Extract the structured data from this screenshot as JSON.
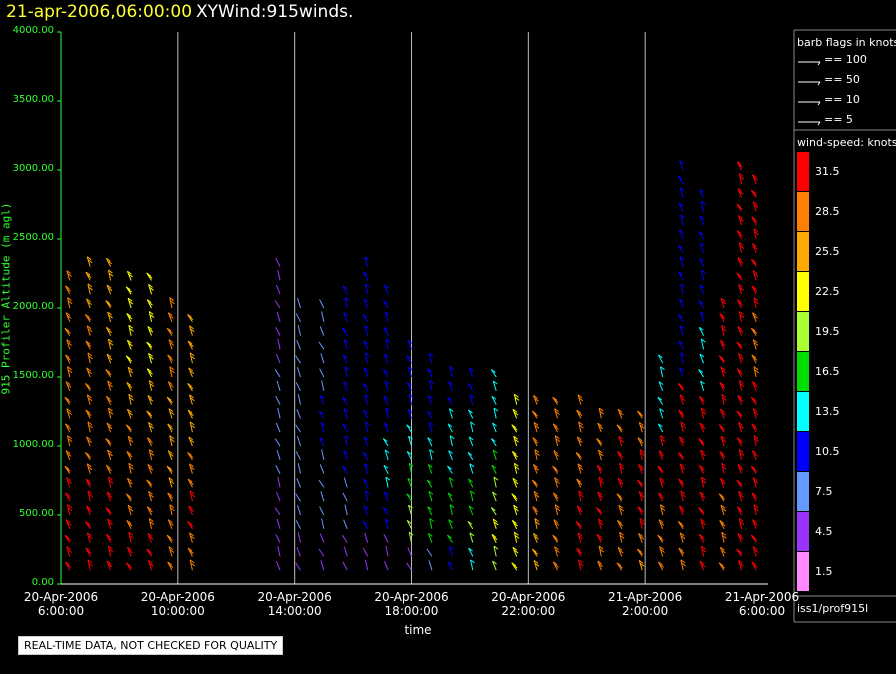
{
  "header": {
    "date": "21-apr-2006,06:00:00",
    "product": "XYWind:915winds."
  },
  "notice": "REAL-TIME DATA, NOT CHECKED FOR QUALITY",
  "footer_id": "iss1/prof915l",
  "legend": {
    "barb_title": "barb flags in knots",
    "barb_items": [
      "== 100",
      "== 50",
      "== 10",
      "== 5"
    ],
    "speed_title": "wind-speed: knots",
    "speed_items": [
      {
        "label": "31.5",
        "color": "#ff0000"
      },
      {
        "label": "28.5",
        "color": "#ff8000"
      },
      {
        "label": "25.5",
        "color": "#ffaa00"
      },
      {
        "label": "22.5",
        "color": "#ffff00"
      },
      {
        "label": "19.5",
        "color": "#aaff33"
      },
      {
        "label": "16.5",
        "color": "#00dd00"
      },
      {
        "label": "13.5",
        "color": "#00ffff"
      },
      {
        "label": "10.5",
        "color": "#0000ff"
      },
      {
        "label": "7.5",
        "color": "#6699ff"
      },
      {
        "label": "4.5",
        "color": "#9933ff"
      },
      {
        "label": "1.5",
        "color": "#ff88ff"
      }
    ]
  },
  "chart_data": {
    "type": "scatter",
    "title": "XYWind:915winds.",
    "ylabel": "915 Profiler Altitude (m agl)",
    "xlabel": "time",
    "ylim": [
      0,
      4000
    ],
    "y_ticks": [
      "0.00",
      "500.00",
      "1000.00",
      "1500.00",
      "2000.00",
      "2500.00",
      "3000.00",
      "3500.00",
      "4000.00"
    ],
    "x_ticks": [
      {
        "date": "20-Apr-2006",
        "time": "6:00:00"
      },
      {
        "date": "20-Apr-2006",
        "time": "10:00:00"
      },
      {
        "date": "20-Apr-2006",
        "time": "14:00:00"
      },
      {
        "date": "20-Apr-2006",
        "time": "18:00:00"
      },
      {
        "date": "20-Apr-2006",
        "time": "22:00:00"
      },
      {
        "date": "21-Apr-2006",
        "time": "2:00:00"
      },
      {
        "date": "21-Apr-2006",
        "time": "6:00:00"
      }
    ],
    "xlim_hours": [
      0,
      24
    ],
    "columns": [
      {
        "t": 0.3,
        "top": 2250,
        "speed": [
          31.5,
          31.5,
          28.5,
          28.5,
          28.5,
          28.5
        ]
      },
      {
        "t": 1.0,
        "top": 2300,
        "speed": [
          31.5,
          31.5,
          28.5,
          28.5,
          28.5,
          25.5
        ]
      },
      {
        "t": 1.7,
        "top": 2350,
        "speed": [
          31.5,
          31.5,
          28.5,
          28.5,
          25.5,
          25.5
        ]
      },
      {
        "t": 2.4,
        "top": 2280,
        "speed": [
          31.5,
          28.5,
          28.5,
          25.5,
          22.5,
          22.5
        ]
      },
      {
        "t": 3.1,
        "top": 2200,
        "speed": [
          31.5,
          28.5,
          28.5,
          25.5,
          22.5,
          22.5
        ]
      },
      {
        "t": 3.8,
        "top": 2050,
        "speed": [
          28.5,
          28.5,
          25.5,
          25.5,
          28.5,
          28.5
        ]
      },
      {
        "t": 4.5,
        "top": 1900,
        "speed": [
          28.5,
          31.5,
          28.5,
          25.5,
          25.5,
          25.5
        ]
      },
      {
        "t": 7.5,
        "top": 2300,
        "speed": [
          4.5,
          4.5,
          7.5,
          7.5,
          4.5,
          4.5
        ]
      },
      {
        "t": 8.2,
        "top": 2050,
        "speed": [
          4.5,
          7.5,
          7.5,
          7.5,
          7.5,
          7.5
        ]
      },
      {
        "t": 9.0,
        "top": 2000,
        "speed": [
          4.5,
          7.5,
          7.5,
          10.5,
          7.5,
          7.5
        ]
      },
      {
        "t": 9.8,
        "top": 2150,
        "speed": [
          4.5,
          7.5,
          10.5,
          10.5,
          10.5,
          10.5
        ]
      },
      {
        "t": 10.5,
        "top": 2300,
        "speed": [
          4.5,
          10.5,
          10.5,
          10.5,
          10.5,
          10.5
        ]
      },
      {
        "t": 11.2,
        "top": 2100,
        "speed": [
          4.5,
          10.5,
          13.5,
          10.5,
          10.5,
          10.5
        ]
      },
      {
        "t": 12.0,
        "top": 1700,
        "speed": [
          4.5,
          19.5,
          16.5,
          13.5,
          10.5,
          10.5
        ]
      },
      {
        "t": 12.7,
        "top": 1650,
        "speed": [
          7.5,
          16.5,
          16.5,
          13.5,
          10.5,
          10.5
        ]
      },
      {
        "t": 13.4,
        "top": 1500,
        "speed": [
          10.5,
          16.5,
          16.5,
          13.5,
          13.5,
          10.5
        ]
      },
      {
        "t": 14.1,
        "top": 1500,
        "speed": [
          13.5,
          19.5,
          16.5,
          13.5,
          13.5,
          10.5
        ]
      },
      {
        "t": 14.9,
        "top": 1500,
        "speed": [
          19.5,
          22.5,
          19.5,
          16.5,
          13.5,
          13.5
        ]
      },
      {
        "t": 15.6,
        "top": 1300,
        "speed": [
          22.5,
          22.5,
          22.5,
          22.5,
          22.5,
          22.5
        ]
      },
      {
        "t": 16.3,
        "top": 1300,
        "speed": [
          25.5,
          25.5,
          28.5,
          28.5,
          28.5,
          28.5
        ]
      },
      {
        "t": 17.0,
        "top": 1350,
        "speed": [
          28.5,
          28.5,
          28.5,
          28.5,
          28.5,
          28.5
        ]
      },
      {
        "t": 17.8,
        "top": 1300,
        "speed": [
          31.5,
          31.5,
          31.5,
          28.5,
          28.5,
          28.5
        ]
      },
      {
        "t": 18.5,
        "top": 1250,
        "speed": [
          28.5,
          31.5,
          31.5,
          31.5,
          28.5,
          28.5
        ]
      },
      {
        "t": 19.2,
        "top": 1250,
        "speed": [
          28.5,
          28.5,
          28.5,
          31.5,
          31.5,
          28.5
        ]
      },
      {
        "t": 19.9,
        "top": 1200,
        "speed": [
          25.5,
          28.5,
          31.5,
          31.5,
          31.5,
          28.5
        ]
      },
      {
        "t": 20.6,
        "top": 1600,
        "speed": [
          28.5,
          28.5,
          31.5,
          31.5,
          13.5,
          13.5
        ]
      },
      {
        "t": 21.3,
        "top": 3000,
        "speed": [
          28.5,
          31.5,
          31.5,
          10.5,
          10.5,
          10.5
        ]
      },
      {
        "t": 22.0,
        "top": 2800,
        "speed": [
          31.5,
          31.5,
          31.5,
          13.5,
          10.5,
          10.5
        ]
      },
      {
        "t": 22.7,
        "top": 2000,
        "speed": [
          28.5,
          28.5,
          31.5,
          31.5,
          31.5,
          31.5
        ]
      },
      {
        "t": 23.3,
        "top": 3000,
        "speed": [
          31.5,
          31.5,
          31.5,
          31.5,
          31.5,
          31.5
        ]
      },
      {
        "t": 23.8,
        "top": 2900,
        "speed": [
          31.5,
          31.5,
          31.5,
          28.5,
          31.5,
          31.5
        ]
      }
    ]
  }
}
